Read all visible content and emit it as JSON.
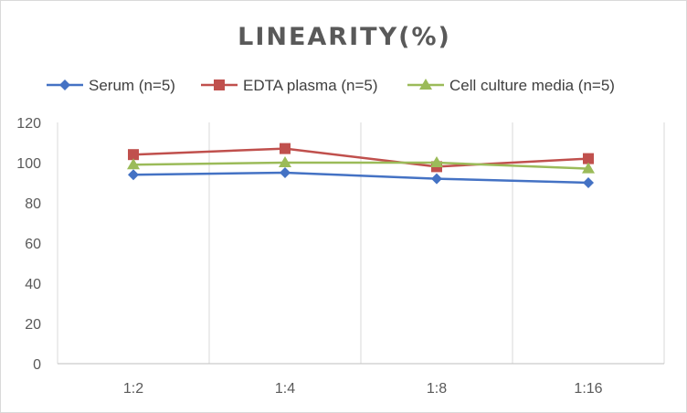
{
  "chart_data": {
    "type": "line",
    "title": "LINEARITY(%)",
    "xlabel": "",
    "ylabel": "",
    "categories": [
      "1:2",
      "1:4",
      "1:8",
      "1:16"
    ],
    "ylim": [
      0,
      120
    ],
    "yticks": [
      0,
      20,
      40,
      60,
      80,
      100,
      120
    ],
    "grid": "vertical",
    "legend_position": "top",
    "series": [
      {
        "name": "Serum (n=5)",
        "values": [
          94,
          95,
          92,
          90
        ],
        "color": "#4472c4",
        "marker": "diamond"
      },
      {
        "name": "EDTA plasma (n=5)",
        "values": [
          104,
          107,
          98,
          102
        ],
        "color": "#c0504d",
        "marker": "square"
      },
      {
        "name": "Cell culture media (n=5)",
        "values": [
          99,
          100,
          100,
          97
        ],
        "color": "#9bbb59",
        "marker": "triangle"
      }
    ]
  }
}
